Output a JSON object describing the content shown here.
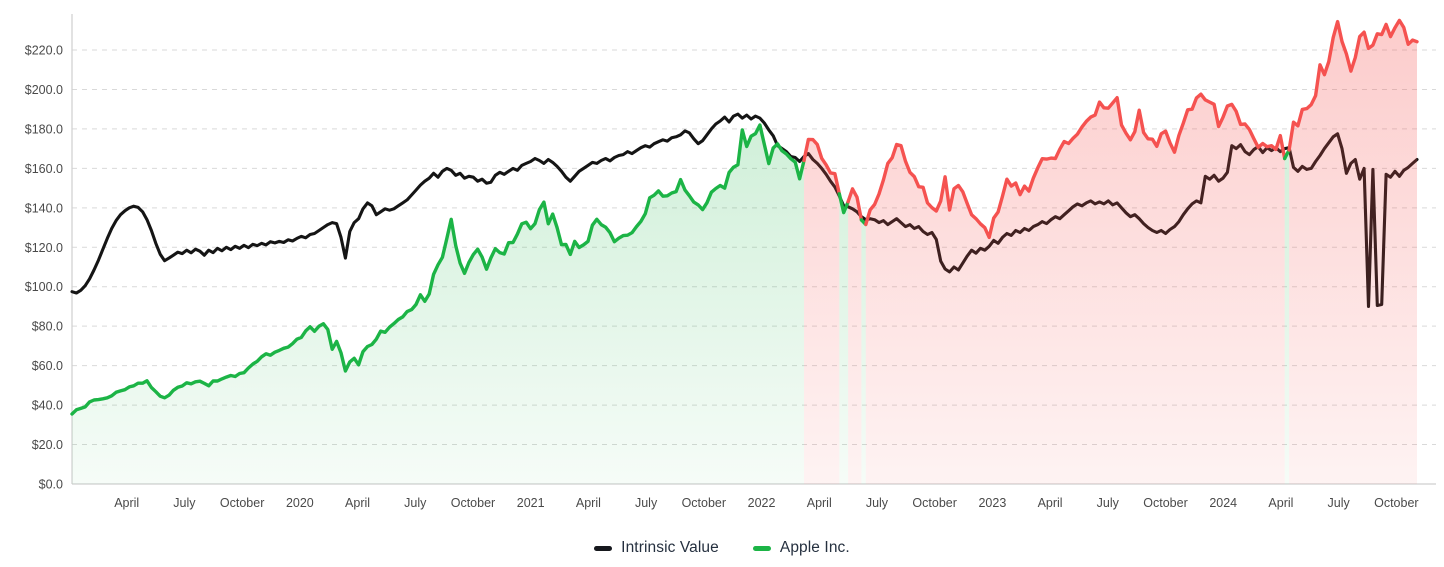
{
  "legend": {
    "intrinsic_label": "Intrinsic Value",
    "stock_label": "Apple Inc."
  },
  "colors": {
    "intrinsic_line": "#151515",
    "stock_under_green": "#1cb446",
    "stock_over_red": "#f55250",
    "grid": "#d9d9d9",
    "axis": "#cfcfcf",
    "tick_text": "#4a4a4a",
    "legend_text": "#25303f"
  },
  "chart_data": {
    "type": "line",
    "title": "",
    "frequency": "weekly",
    "x_start": "2019-01",
    "x_end": "2024-11",
    "ylim": [
      0,
      238
    ],
    "grid": "horizontal-dashed",
    "legend_position": "bottom",
    "y_tick_values": [
      0,
      20,
      40,
      60,
      80,
      100,
      120,
      140,
      160,
      180,
      200,
      220
    ],
    "y_tick_labels": [
      "$0.0",
      "$20.0",
      "$40.0",
      "$60.0",
      "$80.0",
      "$100.0",
      "$120.0",
      "$140.0",
      "$160.0",
      "$180.0",
      "$200.0",
      "$220.0"
    ],
    "x_ticks": [
      {
        "m": 3,
        "label": "April"
      },
      {
        "m": 6,
        "label": "July"
      },
      {
        "m": 9,
        "label": "October"
      },
      {
        "m": 12,
        "label": "2020"
      },
      {
        "m": 15,
        "label": "April"
      },
      {
        "m": 18,
        "label": "July"
      },
      {
        "m": 21,
        "label": "October"
      },
      {
        "m": 24,
        "label": "2021"
      },
      {
        "m": 27,
        "label": "April"
      },
      {
        "m": 30,
        "label": "July"
      },
      {
        "m": 33,
        "label": "October"
      },
      {
        "m": 36,
        "label": "2022"
      },
      {
        "m": 39,
        "label": "April"
      },
      {
        "m": 42,
        "label": "July"
      },
      {
        "m": 45,
        "label": "October"
      },
      {
        "m": 48,
        "label": "2023"
      },
      {
        "m": 51,
        "label": "April"
      },
      {
        "m": 54,
        "label": "July"
      },
      {
        "m": 57,
        "label": "October"
      },
      {
        "m": 60,
        "label": "2024"
      },
      {
        "m": 63,
        "label": "April"
      },
      {
        "m": 66,
        "label": "July"
      },
      {
        "m": 69,
        "label": "October"
      }
    ],
    "series": [
      {
        "name": "Intrinsic Value",
        "color": "#151515",
        "values": [
          97.5,
          96.8,
          98.2,
          100.5,
          104.0,
          108.5,
          113.5,
          119.0,
          124.5,
          129.5,
          133.5,
          136.5,
          138.5,
          140.0,
          140.8,
          140.2,
          138.0,
          134.0,
          128.5,
          122.0,
          116.5,
          113.2,
          114.5,
          116.0,
          117.5,
          116.8,
          118.5,
          117.2,
          119.0,
          118.0,
          116.0,
          118.5,
          117.3,
          119.5,
          118.2,
          120.0,
          118.8,
          120.5,
          119.5,
          121.0,
          119.8,
          121.5,
          120.8,
          122.0,
          121.2,
          122.8,
          122.2,
          123.0,
          122.4,
          123.8,
          123.2,
          124.5,
          125.5,
          124.8,
          126.5,
          127.0,
          128.5,
          130.0,
          131.5,
          132.5,
          132.0,
          125.0,
          114.5,
          128.0,
          132.5,
          134.5,
          139.5,
          142.5,
          141.0,
          136.5,
          138.0,
          139.5,
          138.8,
          139.5,
          141.0,
          142.5,
          144.0,
          146.5,
          149.0,
          151.5,
          153.5,
          155.0,
          157.5,
          155.5,
          158.5,
          160.0,
          159.0,
          156.5,
          157.5,
          155.0,
          156.0,
          155.5,
          153.5,
          154.5,
          152.5,
          153.0,
          156.5,
          158.0,
          157.0,
          158.5,
          160.0,
          159.0,
          161.5,
          162.5,
          163.5,
          165.0,
          164.0,
          162.5,
          164.5,
          163.0,
          161.0,
          158.5,
          155.5,
          153.5,
          156.0,
          158.5,
          160.0,
          161.5,
          163.0,
          162.5,
          164.0,
          165.0,
          163.8,
          165.5,
          166.5,
          167.0,
          168.5,
          167.5,
          169.0,
          170.5,
          171.5,
          170.8,
          172.5,
          173.5,
          174.5,
          173.8,
          175.5,
          176.0,
          177.0,
          179.0,
          178.0,
          175.0,
          172.5,
          174.0,
          177.0,
          180.0,
          182.5,
          184.0,
          186.0,
          183.5,
          186.5,
          187.5,
          185.5,
          187.0,
          185.0,
          186.5,
          185.5,
          183.0,
          179.5,
          176.5,
          171.5,
          170.0,
          168.5,
          166.0,
          165.5,
          163.5,
          166.0,
          167.5,
          164.5,
          162.5,
          160.0,
          157.0,
          153.5,
          150.5,
          146.0,
          141.0,
          140.5,
          139.5,
          138.0,
          135.5,
          134.0,
          134.5,
          134.0,
          132.5,
          133.5,
          131.5,
          133.0,
          134.5,
          132.5,
          130.5,
          131.5,
          129.5,
          130.5,
          128.0,
          126.5,
          127.5,
          124.0,
          113.0,
          109.0,
          107.5,
          110.0,
          108.5,
          112.0,
          115.5,
          118.5,
          117.0,
          119.5,
          118.5,
          120.5,
          123.5,
          122.0,
          125.0,
          127.0,
          126.0,
          128.5,
          127.5,
          129.5,
          128.5,
          130.5,
          131.5,
          133.0,
          132.0,
          134.0,
          135.5,
          134.5,
          136.5,
          138.5,
          140.5,
          142.0,
          141.0,
          142.5,
          143.5,
          142.0,
          143.0,
          142.0,
          143.5,
          141.5,
          142.5,
          140.0,
          137.5,
          135.5,
          136.5,
          134.5,
          132.0,
          130.0,
          128.5,
          127.5,
          128.5,
          127.0,
          129.0,
          130.5,
          133.0,
          136.5,
          139.5,
          142.0,
          143.5,
          142.5,
          156.0,
          154.5,
          156.5,
          153.5,
          155.0,
          158.0,
          171.5,
          170.0,
          172.0,
          168.5,
          167.0,
          169.5,
          171.0,
          168.0,
          170.5,
          169.0,
          170.5,
          168.5,
          170.0,
          170.5,
          160.5,
          158.5,
          161.0,
          159.5,
          160.0,
          163.5,
          166.5,
          170.0,
          173.0,
          176.0,
          177.5,
          170.0,
          157.5,
          162.5,
          164.5,
          154.5,
          160.0,
          90.0,
          159.5,
          90.5,
          91.0,
          157.0,
          155.5,
          158.5,
          156.0,
          159.0,
          160.5,
          162.5,
          164.5
        ]
      },
      {
        "name": "Apple Inc.",
        "color_undervalued": "#1cb446",
        "color_overvalued": "#f55250",
        "fill": "gradient-to-zero",
        "values": [
          35.5,
          37.6,
          38.3,
          39.1,
          41.6,
          42.6,
          42.8,
          43.2,
          43.7,
          44.7,
          46.5,
          47.2,
          47.8,
          49.2,
          49.8,
          51.1,
          51.1,
          52.3,
          48.9,
          46.8,
          44.5,
          43.7,
          45.0,
          47.5,
          49.0,
          49.7,
          51.3,
          50.8,
          51.8,
          52.1,
          51.0,
          49.8,
          52.2,
          52.2,
          53.3,
          54.2,
          55.0,
          54.5,
          56.0,
          56.4,
          58.8,
          60.8,
          62.2,
          64.5,
          66.0,
          65.3,
          66.8,
          67.7,
          68.8,
          69.4,
          71.1,
          73.4,
          74.3,
          77.6,
          79.7,
          77.4,
          80.0,
          81.2,
          78.3,
          68.3,
          72.3,
          66.5,
          57.3,
          61.9,
          63.7,
          60.4,
          67.1,
          69.7,
          70.7,
          73.4,
          77.5,
          76.9,
          79.5,
          81.3,
          83.4,
          84.7,
          87.4,
          88.4,
          91.0,
          95.9,
          92.6,
          96.3,
          106.3,
          111.1,
          114.9,
          124.4,
          134.2,
          120.9,
          112.0,
          106.8,
          112.3,
          116.3,
          119.0,
          115.0,
          108.9,
          114.6,
          119.3,
          117.3,
          116.6,
          122.3,
          122.4,
          126.7,
          131.9,
          132.7,
          129.4,
          132.0,
          139.1,
          142.9,
          131.9,
          136.8,
          129.9,
          121.3,
          121.4,
          116.4,
          123.0,
          119.9,
          121.2,
          123.0,
          131.2,
          134.2,
          131.5,
          130.2,
          127.4,
          122.8,
          124.6,
          125.9,
          126.1,
          127.4,
          130.5,
          133.1,
          137.0,
          145.1,
          146.4,
          148.6,
          145.9,
          146.1,
          147.5,
          148.2,
          154.3,
          149.0,
          146.1,
          142.9,
          141.5,
          139.1,
          142.6,
          147.9,
          149.8,
          151.3,
          150.0,
          157.9,
          160.6,
          161.8,
          179.5,
          171.1,
          176.3,
          177.6,
          182.0,
          172.2,
          162.4,
          170.3,
          172.4,
          168.9,
          167.3,
          164.9,
          163.2,
          154.7,
          164.0,
          174.7,
          174.6,
          172.1,
          165.1,
          161.8,
          157.7,
          157.3,
          147.1,
          137.6,
          143.1,
          149.6,
          145.4,
          133.9,
          131.6,
          139.0,
          141.7,
          147.0,
          154.1,
          162.5,
          165.4,
          172.1,
          171.5,
          163.6,
          158.0,
          155.8,
          150.7,
          150.4,
          142.5,
          140.1,
          138.4,
          143.4,
          155.7,
          138.9,
          149.7,
          151.3,
          148.1,
          142.2,
          136.5,
          134.5,
          131.9,
          129.9,
          125.0,
          134.8,
          137.9,
          145.9,
          154.5,
          151.0,
          152.6,
          146.7,
          151.0,
          148.5,
          155.0,
          160.3,
          164.9,
          164.7,
          165.2,
          165.0,
          169.7,
          173.6,
          172.6,
          175.2,
          177.3,
          180.9,
          183.8,
          186.0,
          187.0,
          193.6,
          190.7,
          190.5,
          193.2,
          195.8,
          182.0,
          177.8,
          174.5,
          178.6,
          189.5,
          178.2,
          175.0,
          174.8,
          171.2,
          177.5,
          178.9,
          172.9,
          168.2,
          176.7,
          182.9,
          189.7,
          190.0,
          195.7,
          197.6,
          194.7,
          193.6,
          192.5,
          181.2,
          185.9,
          191.6,
          192.4,
          188.9,
          182.3,
          182.5,
          179.7,
          175.1,
          170.7,
          172.6,
          171.0,
          171.5,
          169.6,
          176.6,
          165.0,
          169.3,
          183.4,
          181.6,
          189.9,
          190.3,
          192.3,
          196.9,
          212.5,
          207.5,
          214.1,
          226.3,
          234.4,
          224.3,
          218.0,
          209.3,
          216.2,
          226.8,
          229.0,
          220.8,
          222.5,
          228.2,
          227.8,
          233.0,
          226.8,
          231.3,
          235.0,
          231.4,
          222.9,
          225.0,
          224.2
        ]
      }
    ]
  }
}
